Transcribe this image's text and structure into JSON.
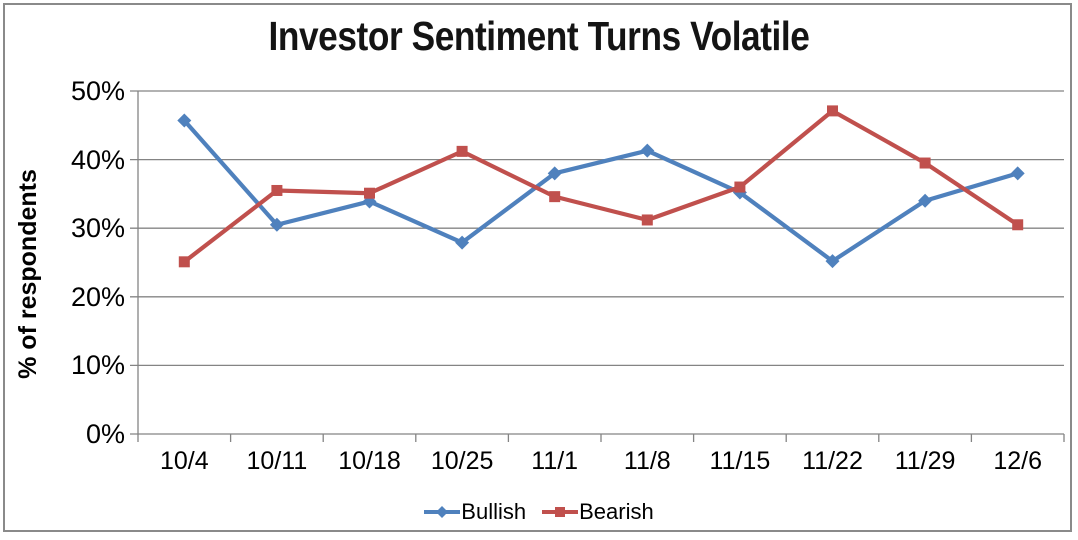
{
  "window": {
    "background": "#ffffff",
    "frame_border_color": "#8a8a8a"
  },
  "chart_data": {
    "type": "line",
    "title": "Investor Sentiment Turns Volatile",
    "xlabel": "",
    "ylabel": "% of respondents",
    "categories": [
      "10/4",
      "10/11",
      "10/18",
      "10/25",
      "11/1",
      "11/8",
      "11/15",
      "11/22",
      "11/29",
      "12/6"
    ],
    "series": [
      {
        "name": "Bullish",
        "color": "#4F81BD",
        "marker": "diamond",
        "values": [
          45.7,
          30.5,
          33.9,
          27.9,
          38.0,
          41.3,
          35.2,
          25.2,
          34.0,
          38.0
        ]
      },
      {
        "name": "Bearish",
        "color": "#C0504D",
        "marker": "square",
        "values": [
          25.1,
          35.5,
          35.1,
          41.2,
          34.6,
          31.2,
          36.0,
          47.1,
          39.5,
          30.5
        ]
      }
    ],
    "ylim": [
      0,
      50
    ],
    "ytick_values": [
      0,
      10,
      20,
      30,
      40,
      50
    ],
    "ytick_labels": [
      "0%",
      "10%",
      "20%",
      "30%",
      "40%",
      "50%"
    ],
    "grid": "horizontal",
    "gridline_color": "#848484",
    "axis_color": "#848484",
    "legend_position": "bottom"
  }
}
